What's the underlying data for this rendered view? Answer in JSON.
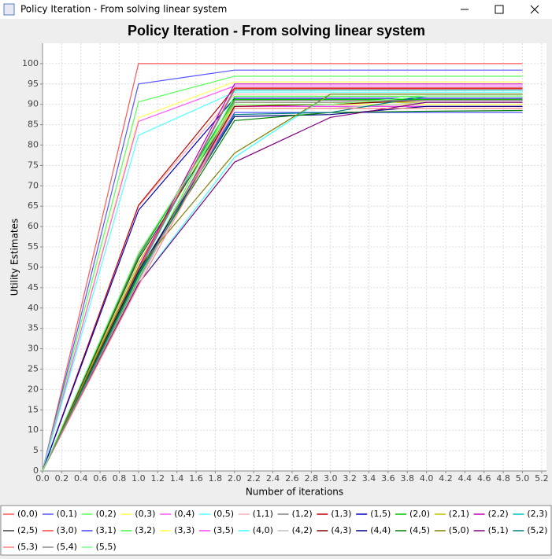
{
  "window_title": "Policy Iteration - From solving linear system",
  "chart_data": {
    "type": "line",
    "title": "Policy Iteration - From solving linear system",
    "x_label": "Number of iterations",
    "y_label": "Utility Estimates",
    "x": [
      0,
      1,
      2,
      3,
      4,
      5
    ],
    "xlim": [
      0,
      5.25
    ],
    "ylim": [
      0,
      105
    ],
    "xticks": [
      {
        "value": 0,
        "label": "0.0"
      },
      0.2,
      0.4,
      0.6,
      0.8,
      {
        "value": 1,
        "label": "1.0"
      },
      1.2,
      1.4,
      1.6,
      1.8,
      {
        "value": 2,
        "label": "2.0"
      },
      2.2,
      2.4,
      2.6,
      2.8,
      {
        "value": 3,
        "label": "3.0"
      },
      3.2,
      3.4,
      3.6,
      3.8,
      {
        "value": 4,
        "label": "4.0"
      },
      4.2,
      4.4,
      4.6,
      4.8,
      {
        "value": 5,
        "label": "5.0"
      },
      5.2
    ],
    "yticks": [
      0,
      5,
      10,
      15,
      20,
      25,
      30,
      35,
      40,
      45,
      50,
      55,
      60,
      65,
      70,
      75,
      80,
      85,
      90,
      95,
      100
    ],
    "grid": true,
    "legend": "bottom",
    "series": [
      {
        "name": "(0,0)",
        "color": "#ff5555",
        "values": [
          0,
          100,
          100,
          100,
          100,
          100
        ]
      },
      {
        "name": "(0,1)",
        "color": "#5555ff",
        "values": [
          0,
          95,
          98.4,
          98.4,
          98.4,
          98.4
        ]
      },
      {
        "name": "(0,2)",
        "color": "#55ff55",
        "values": [
          0,
          90.6,
          96.9,
          96.9,
          96.9,
          96.9
        ]
      },
      {
        "name": "(0,3)",
        "color": "#ffff55",
        "values": [
          0,
          86.7,
          95.5,
          95.5,
          95.5,
          95.5
        ]
      },
      {
        "name": "(0,4)",
        "color": "#ff55ff",
        "values": [
          0,
          85.8,
          94.5,
          94.5,
          94.5,
          94.5
        ]
      },
      {
        "name": "(0,5)",
        "color": "#55ffff",
        "values": [
          0,
          82.4,
          93,
          93,
          93,
          93
        ]
      },
      {
        "name": "(1,1)",
        "color": "#ffafaf",
        "values": [
          0,
          65,
          92.5,
          92.5,
          92.5,
          92.5
        ]
      },
      {
        "name": "(1,2)",
        "color": "#808080",
        "values": [
          0,
          53,
          91,
          91,
          91,
          91
        ]
      },
      {
        "name": "(1,3)",
        "color": "#c00000",
        "values": [
          0,
          65.2,
          94,
          94,
          94,
          94
        ]
      },
      {
        "name": "(1,5)",
        "color": "#0000c0",
        "values": [
          0,
          64,
          91.5,
          91.5,
          91.5,
          91.5
        ]
      },
      {
        "name": "(2,0)",
        "color": "#00c000",
        "values": [
          0,
          52.5,
          91.2,
          91.2,
          91.2,
          91.2
        ]
      },
      {
        "name": "(2,1)",
        "color": "#c0c000",
        "values": [
          0,
          51,
          90.5,
          90.5,
          90.5,
          90.5
        ]
      },
      {
        "name": "(2,2)",
        "color": "#c000c0",
        "values": [
          0,
          50,
          95,
          95,
          95,
          95
        ]
      },
      {
        "name": "(2,3)",
        "color": "#00c0c0",
        "values": [
          0,
          49,
          93.5,
          93.5,
          93.5,
          93.5
        ]
      },
      {
        "name": "(2,5)",
        "color": "#404040",
        "values": [
          0,
          52,
          89.5,
          89.5,
          89.5,
          89.5
        ]
      },
      {
        "name": "(3,0)",
        "color": "#ff4040",
        "values": [
          0,
          49.5,
          93.8,
          93.8,
          93.8,
          93.8
        ]
      },
      {
        "name": "(3,1)",
        "color": "#4040ff",
        "values": [
          0,
          48,
          88,
          88,
          88,
          88
        ]
      },
      {
        "name": "(3,2)",
        "color": "#40ff40",
        "values": [
          0,
          47.5,
          92,
          92,
          92,
          92
        ]
      },
      {
        "name": "(3,3)",
        "color": "#ffff40",
        "values": [
          0,
          47,
          90,
          90,
          90,
          90
        ]
      },
      {
        "name": "(3,5)",
        "color": "#ff40ff",
        "values": [
          0,
          46.5,
          89.5,
          89.5,
          89.5,
          89.5
        ]
      },
      {
        "name": "(4,0)",
        "color": "#40ffff",
        "values": [
          0,
          46,
          77,
          92.5,
          92.5,
          92.5
        ]
      },
      {
        "name": "(4,2)",
        "color": "#c0c0c0",
        "values": [
          0,
          46.5,
          89,
          89,
          90.5,
          90.5
        ]
      },
      {
        "name": "(4,3)",
        "color": "#800000",
        "values": [
          0,
          48,
          89.5,
          90,
          91,
          91
        ]
      },
      {
        "name": "(4,4)",
        "color": "#000080",
        "values": [
          0,
          49,
          87,
          87.5,
          89.5,
          89.5
        ]
      },
      {
        "name": "(4,5)",
        "color": "#008000",
        "values": [
          0,
          48.5,
          86,
          88,
          88.3,
          88.5
        ]
      },
      {
        "name": "(5,0)",
        "color": "#808000",
        "values": [
          0,
          50,
          78,
          92.5,
          92.5,
          92.5
        ]
      },
      {
        "name": "(5,1)",
        "color": "#800080",
        "values": [
          0,
          46,
          75.8,
          86.8,
          90.5,
          90.5
        ]
      },
      {
        "name": "(5,2)",
        "color": "#008080",
        "values": [
          0,
          48,
          87.5,
          88,
          92,
          92
        ]
      },
      {
        "name": "(5,3)",
        "color": "#ff8080",
        "values": [
          0,
          45.5,
          89,
          89,
          89,
          89
        ]
      },
      {
        "name": "(5,4)",
        "color": "#8c8c8c",
        "values": [
          0,
          47,
          90.5,
          90.5,
          91,
          91
        ]
      },
      {
        "name": "(5,5)",
        "color": "#80ff80",
        "values": [
          0,
          53.5,
          90,
          90,
          92,
          92
        ]
      }
    ]
  }
}
